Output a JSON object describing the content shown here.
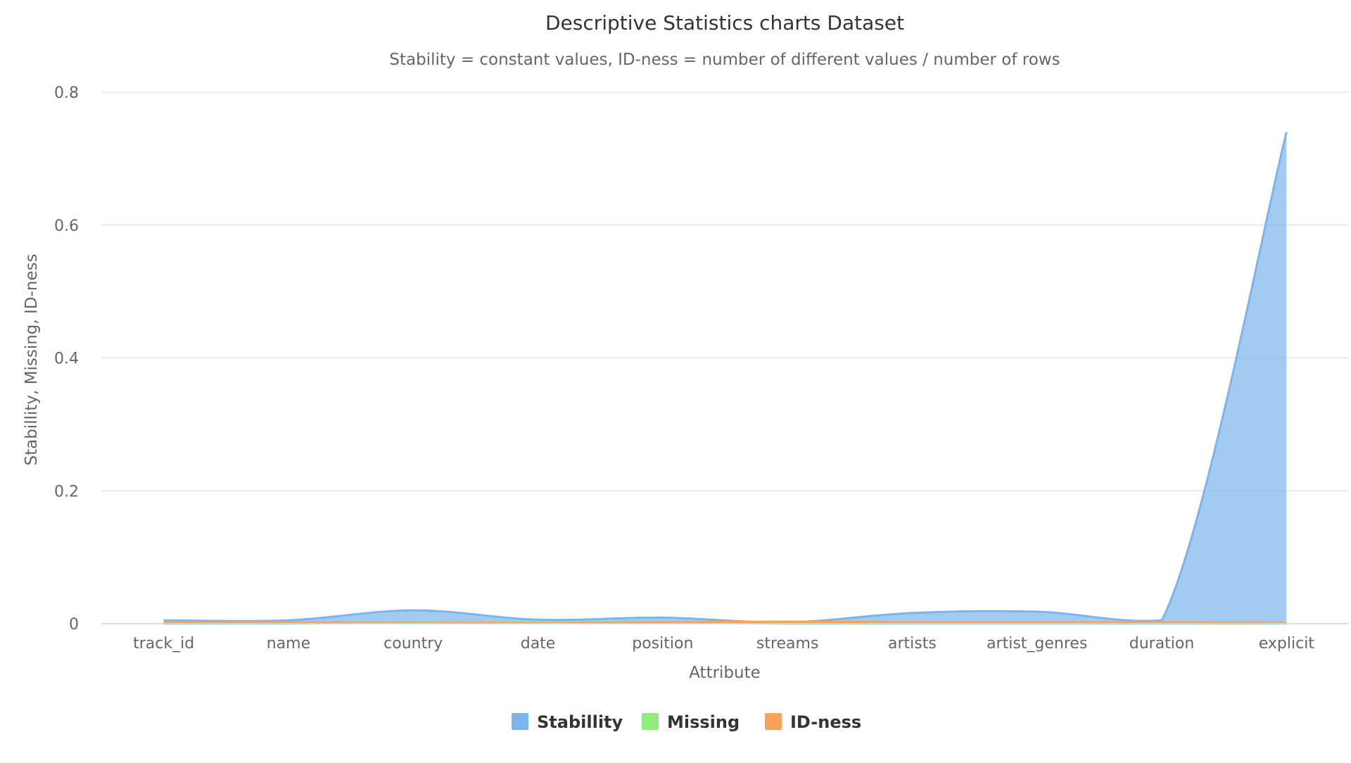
{
  "chart_data": {
    "type": "area",
    "title": "Descriptive Statistics charts Dataset",
    "subtitle": "Stability = constant values, ID-ness = number of different values / number of rows",
    "xlabel": "Attribute",
    "ylabel": "Stabillity, Missing, ID-ness",
    "categories": [
      "track_id",
      "name",
      "country",
      "date",
      "position",
      "streams",
      "artists",
      "artist_genres",
      "duration",
      "explicit"
    ],
    "ylim": [
      0,
      0.8
    ],
    "yticks": [
      0,
      0.2,
      0.4,
      0.6,
      0.8
    ],
    "ytick_labels": [
      "0",
      "0.2",
      "0.4",
      "0.6",
      "0.8"
    ],
    "grid": true,
    "legend_position": "bottom-center",
    "series": [
      {
        "name": "Stabillity",
        "color": "#7cb5ec",
        "values": [
          0.005,
          0.005,
          0.02,
          0.006,
          0.009,
          0.002,
          0.016,
          0.018,
          0.005,
          0.74
        ]
      },
      {
        "name": "Missing",
        "color": "#90ed7d",
        "values": [
          0,
          0,
          0.002,
          0.002,
          0.002,
          0,
          0,
          0,
          0,
          0
        ]
      },
      {
        "name": "ID-ness",
        "color": "#f7a35c",
        "values": [
          0.002,
          0.002,
          0.001,
          0.001,
          0.002,
          0.003,
          0.002,
          0.002,
          0.002,
          0.001
        ]
      }
    ]
  }
}
